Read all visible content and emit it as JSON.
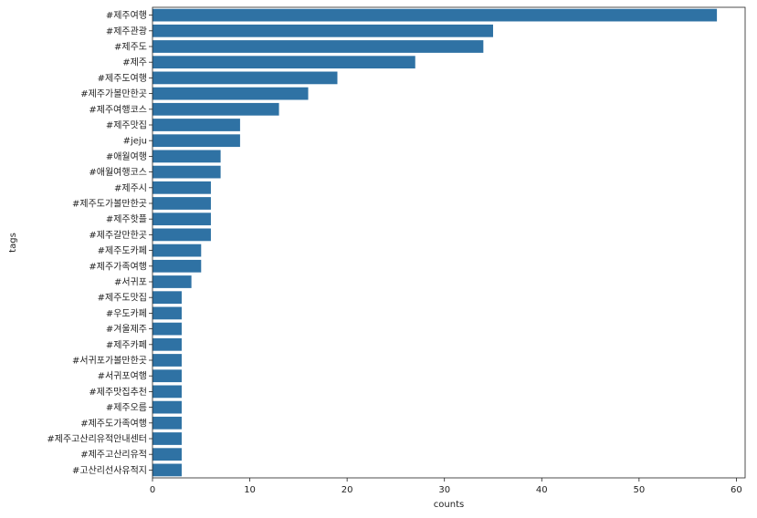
{
  "chart_data": {
    "type": "bar",
    "orientation": "horizontal",
    "xlabel": "counts",
    "ylabel": "tags",
    "xlim": [
      0,
      60.9
    ],
    "xticks": [
      0,
      10,
      20,
      30,
      40,
      50,
      60
    ],
    "grid": false,
    "color": "#2f72a4",
    "categories": [
      "#제주여행",
      "#제주관광",
      "#제주도",
      "#제주",
      "#제주도여행",
      "#제주가볼만한곳",
      "#제주여행코스",
      "#제주맛집",
      "#jeju",
      "#애월여행",
      "#애월여행코스",
      "#제주시",
      "#제주도가볼만한곳",
      "#제주핫플",
      "#제주갈만한곳",
      "#제주도카페",
      "#제주가족여행",
      "#서귀포",
      "#제주도맛집",
      "#우도카페",
      "#겨울제주",
      "#제주카페",
      "#서귀포가볼만한곳",
      "#서귀포여행",
      "#제주맛집추천",
      "#제주오름",
      "#제주도가족여행",
      "#제주고산리유적안내센터",
      "#제주고산리유적",
      "#고산리선사유적지"
    ],
    "values": [
      58,
      35,
      34,
      27,
      19,
      16,
      13,
      9,
      9,
      7,
      7,
      6,
      6,
      6,
      6,
      5,
      5,
      4,
      3,
      3,
      3,
      3,
      3,
      3,
      3,
      3,
      3,
      3,
      3,
      3
    ]
  }
}
